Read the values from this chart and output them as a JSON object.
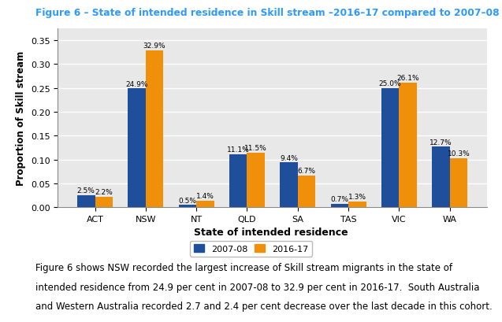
{
  "title": "Figure 6 – State of intended residence in Skill stream –2016–17 compared to 2007–08",
  "categories": [
    "ACT",
    "NSW",
    "NT",
    "QLD",
    "SA",
    "TAS",
    "VIC",
    "WA"
  ],
  "series_2007": [
    0.025,
    0.249,
    0.005,
    0.111,
    0.094,
    0.007,
    0.25,
    0.127
  ],
  "series_2016": [
    0.022,
    0.329,
    0.014,
    0.115,
    0.067,
    0.013,
    0.261,
    0.103
  ],
  "labels_2007": [
    "2.5%",
    "24.9%",
    "0.5%",
    "11.1%",
    "9.4%",
    "0.7%",
    "25.0%",
    "12.7%"
  ],
  "labels_2016": [
    "2.2%",
    "32.9%",
    "1.4%",
    "11.5%",
    "6.7%",
    "1.3%",
    "26.1%",
    "10.3%"
  ],
  "color_2007": "#1F4E9B",
  "color_2016": "#F0900A",
  "xlabel": "State of intended residence",
  "ylabel": "Proportion of Skill stream",
  "ylim": [
    0,
    0.375
  ],
  "yticks": [
    0.0,
    0.05,
    0.1,
    0.15,
    0.2,
    0.25,
    0.3,
    0.35
  ],
  "legend_labels": [
    "2007-08",
    "2016-17"
  ],
  "caption_line1": "Figure 6 shows NSW recorded the largest increase of Skill stream migrants in the state of",
  "caption_line2": "intended residence from 24.9 per cent in 2007-08 to 32.9 per cent in 2016-17.  South Australia",
  "caption_line3": "and Western Australia recorded 2.7 and 2.4 per cent decrease over the last decade in this cohort.",
  "title_color": "#2E9AFE",
  "plot_bg_color": "#E8E8E8",
  "bar_width": 0.35,
  "label_fontsize": 6.5,
  "axis_fontsize": 8,
  "xlabel_fontsize": 9,
  "ylabel_fontsize": 8.5,
  "caption_fontsize": 8.5
}
